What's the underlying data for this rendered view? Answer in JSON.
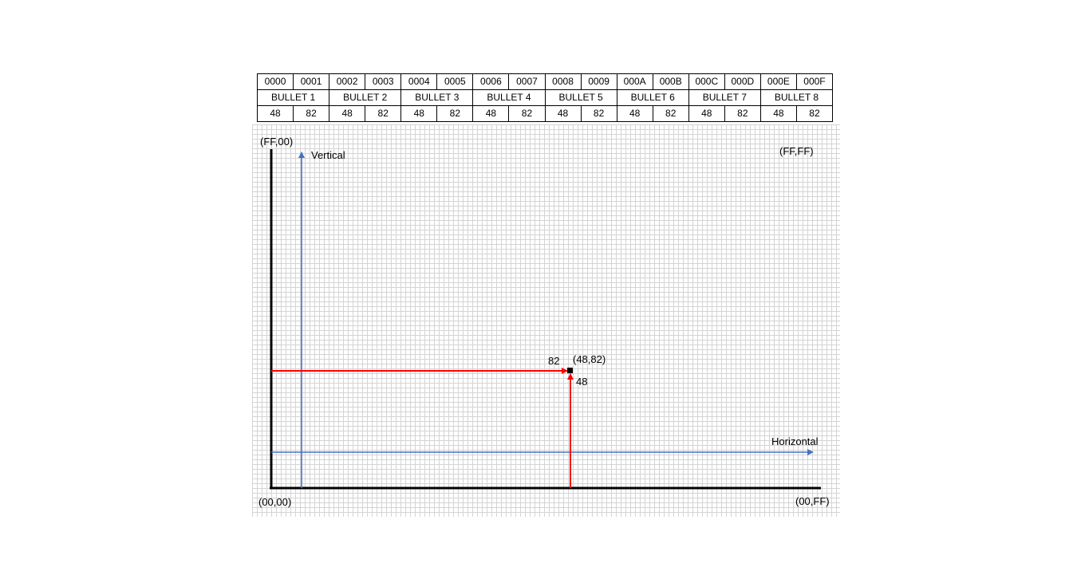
{
  "table": {
    "addresses": [
      "0000",
      "0001",
      "0002",
      "0003",
      "0004",
      "0005",
      "0006",
      "0007",
      "0008",
      "0009",
      "000A",
      "000B",
      "000C",
      "000D",
      "000E",
      "000F"
    ],
    "bullets": [
      "BULLET 1",
      "BULLET 2",
      "BULLET 3",
      "BULLET 4",
      "BULLET 5",
      "BULLET 6",
      "BULLET 7",
      "BULLET 8"
    ],
    "values": [
      "48",
      "82",
      "48",
      "82",
      "48",
      "82",
      "48",
      "82",
      "48",
      "82",
      "48",
      "82",
      "48",
      "82",
      "48",
      "82"
    ]
  },
  "diagram": {
    "corner_top_left": "(FF,00)",
    "corner_top_right": "(FF,FF)",
    "corner_bottom_left": "(00,00)",
    "corner_bottom_right": "(00,FF)",
    "vertical_label": "Vertical",
    "horizontal_label": "Horizontal",
    "point_label": "(48,82)",
    "red_h_label": "82",
    "red_v_label": "48",
    "colors": {
      "axis": "#000000",
      "guide": "#4472c4",
      "pointer": "#ff0000",
      "grid": "#d4d4d4"
    }
  }
}
